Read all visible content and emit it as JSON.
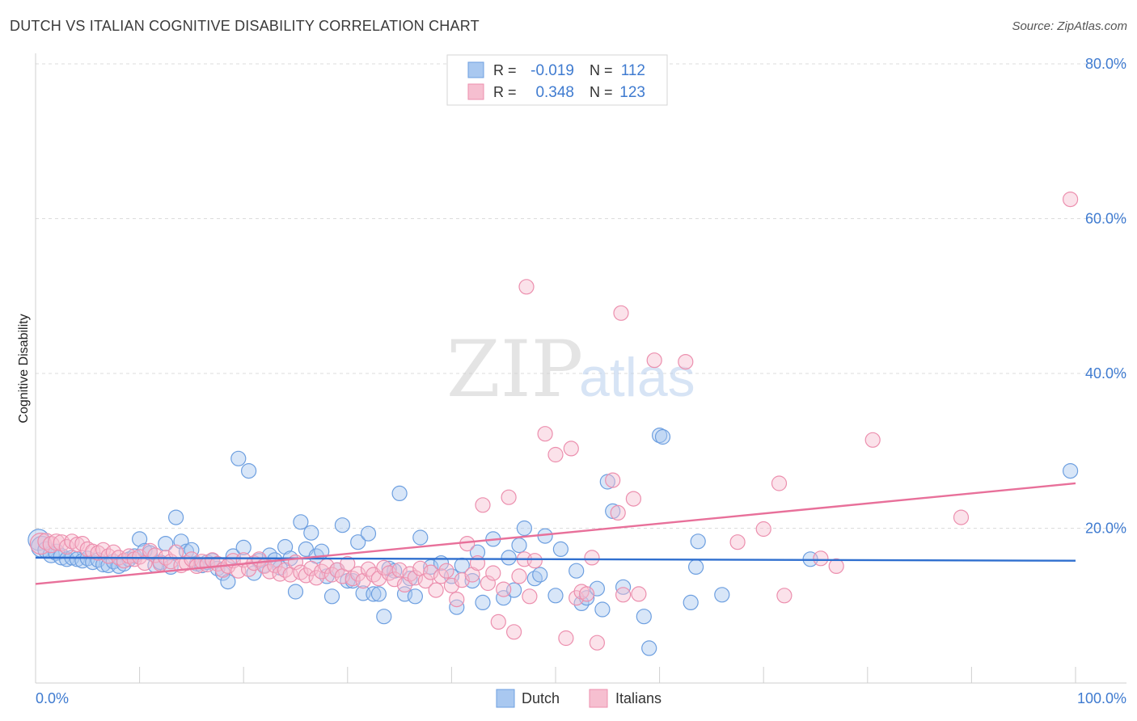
{
  "header": {
    "title": "DUTCH VS ITALIAN COGNITIVE DISABILITY CORRELATION CHART",
    "source": "Source: ZipAtlas.com"
  },
  "legend_box": {
    "rows": [
      {
        "r_label": "R =",
        "r_value": "-0.019",
        "n_label": "N =",
        "n_value": "112"
      },
      {
        "r_label": "R =",
        "r_value": "0.348",
        "n_label": "N =",
        "n_value": "123"
      }
    ]
  },
  "watermark": {
    "part1": "ZIP",
    "part2": "atlas"
  },
  "colors": {
    "dutch_fill": "#a9c8f0",
    "dutch_stroke": "#6d9fe0",
    "dutch_line": "#2f6fcf",
    "italian_fill": "#f6bfd0",
    "italian_stroke": "#ec8fae",
    "italian_line": "#e8709a",
    "tick_text": "#3f7bd0"
  },
  "chart_data": {
    "type": "scatter",
    "title": "DUTCH VS ITALIAN COGNITIVE DISABILITY CORRELATION CHART",
    "ylabel": "Cognitive Disability",
    "xlabel": "",
    "xlim": [
      0,
      100
    ],
    "ylim": [
      0,
      80
    ],
    "x_ticks": [
      "0.0%",
      "100.0%"
    ],
    "y_ticks": [
      {
        "value": 20,
        "label": "20.0%"
      },
      {
        "value": 40,
        "label": "40.0%"
      },
      {
        "value": 60,
        "label": "60.0%"
      },
      {
        "value": 80,
        "label": "80.0%"
      }
    ],
    "grid": true,
    "legend_position": "bottom-center",
    "series": [
      {
        "name": "Dutch",
        "R": -0.019,
        "N": 112,
        "trend": {
          "x0": 0,
          "y0": 16.2,
          "x1": 100,
          "y1": 15.8
        },
        "points": [
          [
            0.3,
            18.5
          ],
          [
            0.6,
            17.6
          ],
          [
            1.0,
            17.2
          ],
          [
            1.5,
            16.6
          ],
          [
            2.0,
            16.9
          ],
          [
            2.5,
            16.3
          ],
          [
            3.0,
            16.0
          ],
          [
            3.5,
            16.2
          ],
          [
            4.0,
            16.0
          ],
          [
            4.5,
            15.8
          ],
          [
            5.0,
            16.1
          ],
          [
            5.5,
            15.6
          ],
          [
            6.0,
            15.9
          ],
          [
            6.5,
            15.3
          ],
          [
            7.0,
            15.2
          ],
          [
            7.5,
            15.7
          ],
          [
            8.0,
            15.1
          ],
          [
            8.5,
            15.4
          ],
          [
            9.0,
            16.0
          ],
          [
            9.5,
            16.4
          ],
          [
            10.0,
            18.6
          ],
          [
            10.5,
            17.1
          ],
          [
            11.0,
            16.8
          ],
          [
            11.5,
            15.2
          ],
          [
            12.0,
            15.6
          ],
          [
            12.5,
            18.0
          ],
          [
            13.0,
            15.0
          ],
          [
            13.5,
            21.4
          ],
          [
            14.0,
            18.3
          ],
          [
            14.5,
            17.0
          ],
          [
            15.0,
            17.2
          ],
          [
            15.5,
            15.4
          ],
          [
            16.0,
            15.2
          ],
          [
            16.5,
            15.6
          ],
          [
            17.0,
            15.8
          ],
          [
            17.5,
            14.8
          ],
          [
            18.0,
            14.2
          ],
          [
            18.5,
            13.1
          ],
          [
            19.0,
            16.4
          ],
          [
            19.5,
            29.0
          ],
          [
            20.0,
            17.5
          ],
          [
            20.5,
            27.4
          ],
          [
            21.0,
            14.2
          ],
          [
            21.5,
            15.8
          ],
          [
            22.0,
            15.2
          ],
          [
            22.5,
            16.5
          ],
          [
            23.0,
            15.9
          ],
          [
            23.5,
            14.9
          ],
          [
            24.0,
            17.6
          ],
          [
            24.5,
            16.1
          ],
          [
            25.0,
            11.8
          ],
          [
            25.5,
            20.8
          ],
          [
            26.0,
            17.3
          ],
          [
            26.5,
            19.4
          ],
          [
            27.0,
            16.4
          ],
          [
            27.5,
            17.0
          ],
          [
            28.0,
            13.8
          ],
          [
            28.5,
            11.2
          ],
          [
            29.0,
            14.6
          ],
          [
            29.5,
            20.4
          ],
          [
            30.0,
            13.2
          ],
          [
            30.5,
            13.2
          ],
          [
            31.0,
            18.2
          ],
          [
            31.5,
            11.6
          ],
          [
            32.0,
            19.3
          ],
          [
            32.5,
            11.5
          ],
          [
            33.0,
            11.5
          ],
          [
            33.5,
            8.6
          ],
          [
            34.0,
            14.8
          ],
          [
            34.5,
            14.5
          ],
          [
            35.0,
            24.5
          ],
          [
            35.5,
            11.5
          ],
          [
            36.0,
            13.5
          ],
          [
            36.5,
            11.2
          ],
          [
            37.0,
            18.8
          ],
          [
            38.0,
            15.0
          ],
          [
            39.0,
            15.5
          ],
          [
            40.0,
            13.8
          ],
          [
            40.5,
            9.8
          ],
          [
            41.0,
            15.2
          ],
          [
            42.0,
            13.2
          ],
          [
            42.5,
            16.9
          ],
          [
            43.0,
            10.4
          ],
          [
            44.0,
            18.6
          ],
          [
            45.0,
            11.0
          ],
          [
            45.5,
            16.2
          ],
          [
            46.0,
            12.0
          ],
          [
            46.5,
            17.8
          ],
          [
            47.0,
            20.0
          ],
          [
            48.0,
            13.5
          ],
          [
            48.5,
            14.0
          ],
          [
            49.0,
            19.0
          ],
          [
            50.0,
            11.3
          ],
          [
            50.5,
            17.3
          ],
          [
            52.0,
            14.5
          ],
          [
            52.5,
            10.3
          ],
          [
            53.0,
            11.0
          ],
          [
            54.0,
            12.2
          ],
          [
            54.5,
            9.5
          ],
          [
            55.0,
            26.0
          ],
          [
            55.5,
            22.2
          ],
          [
            56.5,
            12.4
          ],
          [
            58.5,
            8.6
          ],
          [
            59.0,
            4.5
          ],
          [
            60.0,
            32.0
          ],
          [
            60.3,
            31.8
          ],
          [
            63.0,
            10.4
          ],
          [
            63.5,
            15.0
          ],
          [
            63.7,
            18.3
          ],
          [
            66.0,
            11.4
          ],
          [
            74.5,
            16.0
          ],
          [
            99.5,
            27.4
          ]
        ]
      },
      {
        "name": "Italians",
        "R": 0.348,
        "N": 123,
        "trend": {
          "x0": 0,
          "y0": 12.8,
          "x1": 100,
          "y1": 25.8
        },
        "points": [
          [
            0.5,
            18.0
          ],
          [
            1.0,
            18.3
          ],
          [
            1.5,
            17.9
          ],
          [
            2.0,
            18.2
          ],
          [
            2.5,
            18.1
          ],
          [
            3.0,
            17.6
          ],
          [
            3.5,
            18.3
          ],
          [
            4.0,
            17.9
          ],
          [
            4.5,
            18.0
          ],
          [
            5.0,
            17.3
          ],
          [
            5.5,
            17.0
          ],
          [
            6.0,
            16.8
          ],
          [
            6.5,
            17.2
          ],
          [
            7.0,
            16.4
          ],
          [
            7.5,
            16.9
          ],
          [
            8.0,
            16.2
          ],
          [
            8.5,
            15.8
          ],
          [
            9.0,
            16.4
          ],
          [
            9.5,
            16.0
          ],
          [
            10.0,
            16.3
          ],
          [
            10.5,
            15.5
          ],
          [
            11.0,
            17.1
          ],
          [
            11.5,
            16.5
          ],
          [
            12.0,
            15.4
          ],
          [
            12.5,
            16.2
          ],
          [
            13.0,
            15.7
          ],
          [
            13.5,
            16.9
          ],
          [
            14.0,
            15.2
          ],
          [
            14.5,
            15.5
          ],
          [
            15.0,
            16.0
          ],
          [
            15.5,
            15.1
          ],
          [
            16.0,
            15.7
          ],
          [
            16.5,
            15.3
          ],
          [
            17.0,
            15.9
          ],
          [
            17.5,
            15.4
          ],
          [
            18.0,
            14.6
          ],
          [
            18.5,
            15.1
          ],
          [
            19.0,
            15.8
          ],
          [
            19.5,
            14.5
          ],
          [
            20.0,
            15.9
          ],
          [
            20.5,
            14.7
          ],
          [
            21.0,
            15.5
          ],
          [
            21.5,
            16.0
          ],
          [
            22.0,
            15.1
          ],
          [
            22.5,
            14.4
          ],
          [
            23.0,
            15.2
          ],
          [
            23.5,
            14.1
          ],
          [
            24.0,
            14.6
          ],
          [
            24.5,
            14.0
          ],
          [
            25.0,
            15.6
          ],
          [
            25.5,
            14.3
          ],
          [
            26.0,
            13.9
          ],
          [
            26.5,
            14.8
          ],
          [
            27.0,
            13.6
          ],
          [
            27.5,
            14.4
          ],
          [
            28.0,
            15.1
          ],
          [
            28.5,
            14.0
          ],
          [
            29.0,
            14.6
          ],
          [
            29.5,
            13.8
          ],
          [
            30.0,
            15.4
          ],
          [
            30.5,
            13.5
          ],
          [
            31.0,
            14.1
          ],
          [
            31.5,
            13.2
          ],
          [
            32.0,
            14.7
          ],
          [
            32.5,
            14.0
          ],
          [
            33.0,
            13.5
          ],
          [
            33.5,
            14.9
          ],
          [
            34.0,
            14.2
          ],
          [
            34.5,
            13.4
          ],
          [
            35.0,
            14.6
          ],
          [
            35.5,
            12.7
          ],
          [
            36.0,
            14.1
          ],
          [
            36.5,
            13.6
          ],
          [
            37.0,
            14.8
          ],
          [
            37.5,
            13.2
          ],
          [
            38.0,
            14.3
          ],
          [
            38.5,
            12.0
          ],
          [
            39.0,
            13.8
          ],
          [
            39.5,
            14.5
          ],
          [
            40.0,
            12.6
          ],
          [
            40.5,
            10.8
          ],
          [
            41.0,
            13.3
          ],
          [
            41.5,
            18.0
          ],
          [
            42.0,
            14.0
          ],
          [
            42.5,
            15.5
          ],
          [
            43.0,
            23.0
          ],
          [
            43.5,
            12.9
          ],
          [
            44.0,
            14.2
          ],
          [
            44.5,
            7.9
          ],
          [
            45.0,
            12.1
          ],
          [
            45.5,
            24.0
          ],
          [
            46.0,
            6.6
          ],
          [
            46.5,
            13.8
          ],
          [
            47.0,
            16.0
          ],
          [
            47.5,
            11.2
          ],
          [
            48.0,
            15.8
          ],
          [
            49.0,
            32.2
          ],
          [
            50.0,
            29.5
          ],
          [
            51.0,
            5.8
          ],
          [
            51.5,
            30.3
          ],
          [
            52.0,
            11.0
          ],
          [
            52.5,
            11.8
          ],
          [
            53.0,
            11.5
          ],
          [
            53.5,
            16.2
          ],
          [
            54.0,
            5.2
          ],
          [
            55.5,
            26.2
          ],
          [
            56.0,
            22.0
          ],
          [
            56.5,
            11.4
          ],
          [
            57.5,
            23.8
          ],
          [
            58.0,
            11.5
          ],
          [
            59.5,
            41.7
          ],
          [
            62.5,
            41.5
          ],
          [
            47.2,
            51.2
          ],
          [
            56.3,
            47.8
          ],
          [
            67.5,
            18.2
          ],
          [
            70.0,
            19.9
          ],
          [
            71.5,
            25.8
          ],
          [
            72.0,
            11.3
          ],
          [
            75.5,
            16.1
          ],
          [
            77.0,
            15.1
          ],
          [
            80.5,
            31.4
          ],
          [
            89.0,
            21.4
          ],
          [
            99.5,
            62.5
          ]
        ]
      }
    ]
  }
}
